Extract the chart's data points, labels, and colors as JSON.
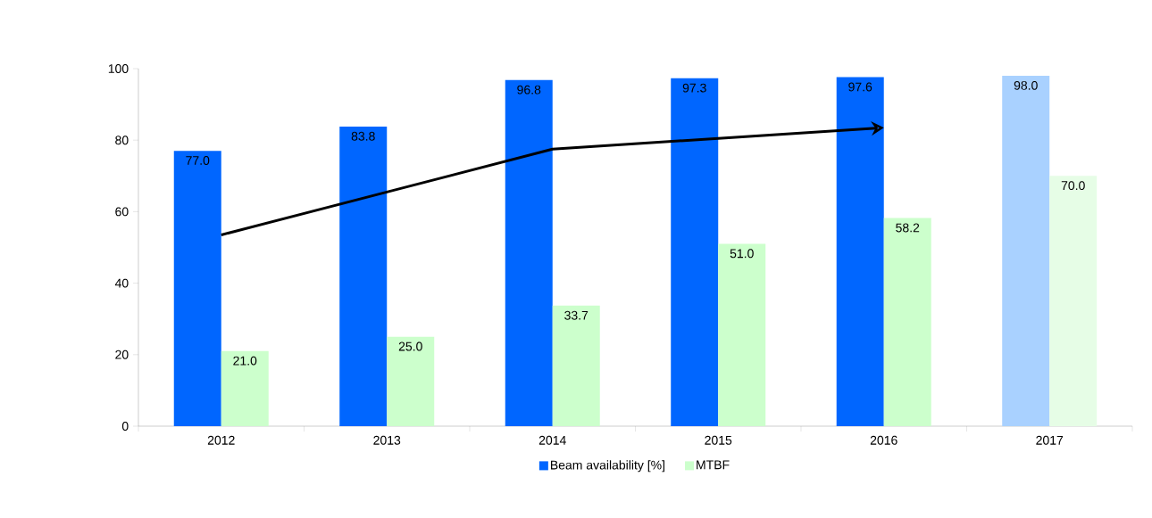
{
  "chart_data": {
    "type": "bar",
    "categories": [
      "2012",
      "2013",
      "2014",
      "2015",
      "2016",
      "2017"
    ],
    "series": [
      {
        "name": "Beam availability [%]",
        "color": "#0066ff",
        "colors": [
          "#0066ff",
          "#0066ff",
          "#0066ff",
          "#0066ff",
          "#0066ff",
          "#a9d1ff"
        ],
        "values": [
          77.0,
          83.8,
          96.8,
          97.3,
          97.6,
          98.0
        ],
        "value_labels": [
          "77.0",
          "83.8",
          "96.8",
          "97.3",
          "97.6",
          "98.0"
        ]
      },
      {
        "name": "MTBF",
        "color": "#ccffcc",
        "colors": [
          "#ccffcc",
          "#ccffcc",
          "#ccffcc",
          "#ccffcc",
          "#ccffcc",
          "#e6fde6"
        ],
        "values": [
          21.0,
          25.0,
          33.7,
          51.0,
          58.2,
          70.0
        ],
        "value_labels": [
          "21.0",
          "25.0",
          "33.7",
          "51.0",
          "58.2",
          "70.0"
        ]
      },
      {
        "type": "line",
        "color": "#000000",
        "values": [
          53.5,
          65.5,
          77.5,
          80.5,
          83.5,
          null
        ]
      }
    ],
    "ylim": [
      0,
      100
    ],
    "yticks": [
      0,
      20,
      40,
      60,
      80,
      100
    ],
    "grid": false,
    "legend": "bottom",
    "marker": "none"
  }
}
